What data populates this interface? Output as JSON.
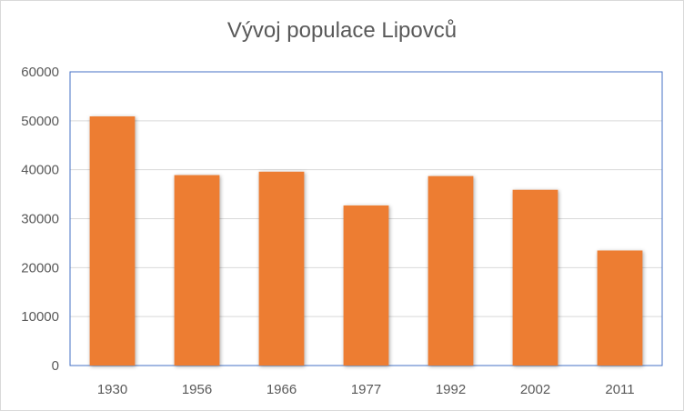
{
  "chart_data": {
    "type": "bar",
    "title": "Vývoj populace Lipovců",
    "categories": [
      "1930",
      "1956",
      "1966",
      "1977",
      "1992",
      "2002",
      "2011"
    ],
    "values": [
      50900,
      38900,
      39600,
      32700,
      38700,
      35900,
      23500
    ],
    "ylim": [
      0,
      60000
    ],
    "yticks": [
      "0",
      "10000",
      "20000",
      "30000",
      "40000",
      "50000",
      "60000"
    ],
    "xlabel": "",
    "ylabel": "",
    "grid": true,
    "legend": "none",
    "colors": {
      "bar": "#ED7D31",
      "grid": "#d9d9d9",
      "plot_border": "#4472C4"
    }
  }
}
